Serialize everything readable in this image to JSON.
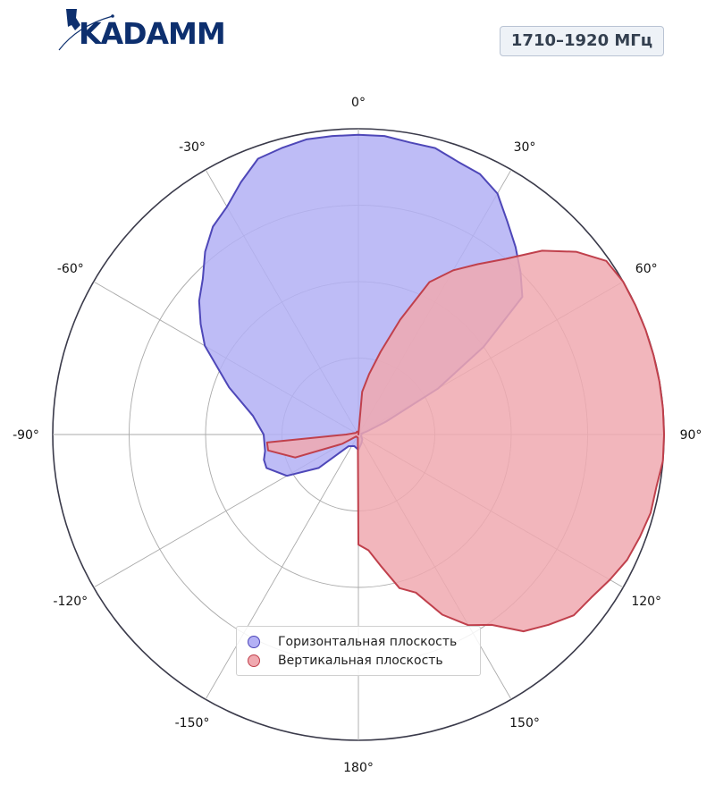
{
  "brand": {
    "logo_text": "KADAMM"
  },
  "badge": {
    "frequency": "1710–1920 МГц"
  },
  "colors": {
    "horizontal_fill": "#b3b0f5",
    "horizontal_stroke": "#4e47b8",
    "vertical_fill": "#f0a9b0",
    "vertical_stroke": "#c0404c",
    "grid": "#aaaaaa",
    "frame": "#3a3a4a"
  },
  "chart_data": {
    "type": "polar",
    "title": "",
    "angle_ticks": [
      "0°",
      "30°",
      "60°",
      "90°",
      "120°",
      "150°",
      "180°",
      "-150°",
      "-120°",
      "-90°",
      "-60°",
      "-30°"
    ],
    "angle_direction": "clockwise",
    "zero_location": "top",
    "radial_grid_fractions": [
      0.25,
      0.5,
      0.75,
      1.0
    ],
    "radial_tick_labels": false,
    "legend_placement": "lower-center",
    "series": [
      {
        "name": "Горизонтальная плоскость",
        "color_key": "horizontal",
        "points": [
          [
            -180,
            0.05
          ],
          [
            -160,
            0.04
          ],
          [
            -140,
            0.05
          ],
          [
            -130,
            0.17
          ],
          [
            -120,
            0.27
          ],
          [
            -110,
            0.32
          ],
          [
            -105,
            0.32
          ],
          [
            -100,
            0.31
          ],
          [
            -90,
            0.31
          ],
          [
            -80,
            0.35
          ],
          [
            -70,
            0.45
          ],
          [
            -60,
            0.58
          ],
          [
            -55,
            0.63
          ],
          [
            -50,
            0.68
          ],
          [
            -45,
            0.72
          ],
          [
            -40,
            0.78
          ],
          [
            -35,
            0.83
          ],
          [
            -30,
            0.86
          ],
          [
            -25,
            0.91
          ],
          [
            -20,
            0.96
          ],
          [
            -15,
            0.97
          ],
          [
            -10,
            0.98
          ],
          [
            -5,
            0.98
          ],
          [
            0,
            0.98
          ],
          [
            5,
            0.98
          ],
          [
            10,
            0.97
          ],
          [
            15,
            0.97
          ],
          [
            20,
            0.95
          ],
          [
            25,
            0.94
          ],
          [
            30,
            0.91
          ],
          [
            35,
            0.85
          ],
          [
            40,
            0.8
          ],
          [
            45,
            0.75
          ],
          [
            50,
            0.7
          ],
          [
            55,
            0.5
          ],
          [
            60,
            0.3
          ],
          [
            65,
            0.1
          ],
          [
            70,
            0.03
          ],
          [
            75,
            0.01
          ],
          [
            80,
            0.01
          ],
          [
            90,
            0.01
          ],
          [
            100,
            0.01
          ],
          [
            120,
            0.01
          ],
          [
            140,
            0.02
          ],
          [
            160,
            0.03
          ],
          [
            180,
            0.05
          ]
        ]
      },
      {
        "name": "Вертикальная плоскость",
        "color_key": "vertical",
        "points": [
          [
            0,
            0.0
          ],
          [
            5,
            0.14
          ],
          [
            10,
            0.2
          ],
          [
            15,
            0.28
          ],
          [
            20,
            0.4
          ],
          [
            25,
            0.55
          ],
          [
            30,
            0.62
          ],
          [
            35,
            0.68
          ],
          [
            40,
            0.75
          ],
          [
            45,
            0.85
          ],
          [
            50,
            0.93
          ],
          [
            55,
            0.99
          ],
          [
            60,
            1.0
          ],
          [
            65,
            1.0
          ],
          [
            70,
            1.0
          ],
          [
            75,
            1.0
          ],
          [
            80,
            1.0
          ],
          [
            85,
            1.0
          ],
          [
            90,
            1.0
          ],
          [
            95,
            1.0
          ],
          [
            100,
            0.99
          ],
          [
            105,
            0.99
          ],
          [
            110,
            0.98
          ],
          [
            115,
            0.97
          ],
          [
            120,
            0.95
          ],
          [
            125,
            0.93
          ],
          [
            130,
            0.92
          ],
          [
            135,
            0.88
          ],
          [
            140,
            0.84
          ],
          [
            145,
            0.76
          ],
          [
            150,
            0.72
          ],
          [
            155,
            0.65
          ],
          [
            160,
            0.55
          ],
          [
            165,
            0.52
          ],
          [
            170,
            0.44
          ],
          [
            175,
            0.38
          ],
          [
            180,
            0.36
          ],
          [
            185,
            0.02
          ],
          [
            190,
            0.01
          ],
          [
            200,
            0.01
          ],
          [
            230,
            0.01
          ],
          [
            240,
            0.06
          ],
          [
            250,
            0.22
          ],
          [
            260,
            0.3
          ],
          [
            265,
            0.3
          ],
          [
            270,
            0.04
          ],
          [
            280,
            0.02
          ],
          [
            300,
            0.01
          ],
          [
            330,
            0.01
          ],
          [
            340,
            0.01
          ],
          [
            350,
            0.01
          ],
          [
            355,
            0.01
          ],
          [
            360,
            0.0
          ]
        ]
      }
    ]
  },
  "legend": {
    "items": [
      {
        "label": "Горизонтальная плоскость"
      },
      {
        "label": "Вертикальная плоскость"
      }
    ]
  }
}
